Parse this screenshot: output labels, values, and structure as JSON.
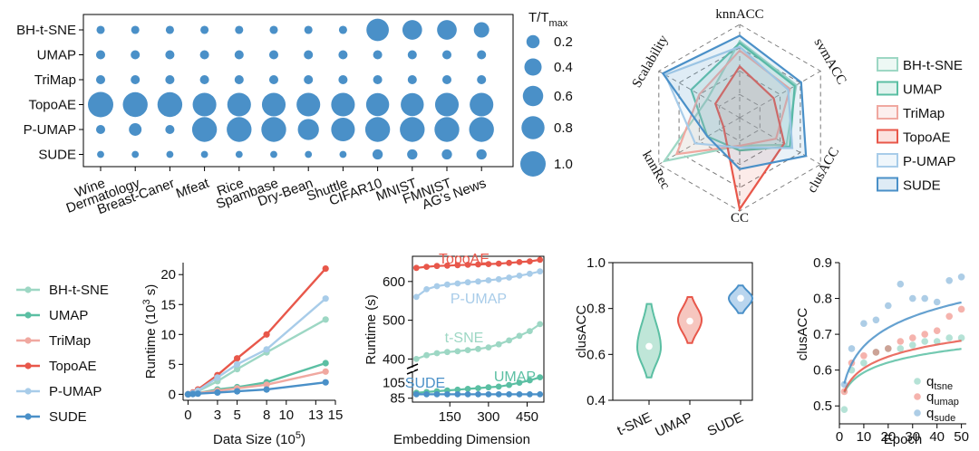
{
  "chart_data": [
    {
      "id": "bubble",
      "type": "scatter",
      "title": "",
      "rows": [
        "BH-t-SNE",
        "UMAP",
        "TriMap",
        "TopoAE",
        "P-UMAP",
        "SUDE"
      ],
      "columns": [
        "Wine",
        "Dermatology",
        "Breast-Caner",
        "Mfeat",
        "Rice",
        "Spambase",
        "Dry-Bean",
        "Shuttle",
        "CIFAR10",
        "MNIST",
        "FMNIST",
        "AG's News"
      ],
      "values": [
        [
          0.05,
          0.05,
          0.05,
          0.05,
          0.05,
          0.05,
          0.05,
          0.05,
          0.75,
          0.55,
          0.55,
          0.3
        ],
        [
          0.07,
          0.07,
          0.07,
          0.07,
          0.07,
          0.07,
          0.07,
          0.07,
          0.07,
          0.07,
          0.07,
          0.07
        ],
        [
          0.07,
          0.07,
          0.07,
          0.07,
          0.07,
          0.07,
          0.07,
          0.07,
          0.07,
          0.07,
          0.07,
          0.07
        ],
        [
          1.0,
          0.95,
          0.95,
          0.85,
          0.85,
          0.85,
          0.85,
          0.85,
          0.8,
          0.8,
          0.85,
          0.85
        ],
        [
          0.07,
          0.18,
          0.07,
          0.95,
          0.95,
          0.95,
          0.65,
          0.85,
          0.95,
          0.95,
          0.95,
          0.95
        ],
        [
          0.03,
          0.03,
          0.03,
          0.03,
          0.03,
          0.03,
          0.03,
          0.03,
          0.1,
          0.1,
          0.1,
          0.1
        ]
      ],
      "legend_title_base": "T/T",
      "legend_title_sub": "max",
      "legend": [
        0.2,
        0.4,
        0.6,
        0.8,
        1.0
      ],
      "legend_labels": [
        "0.2",
        "0.4",
        "0.6",
        "0.8",
        "1.0"
      ],
      "color": "#4a90c8"
    },
    {
      "id": "radar",
      "type": "radar",
      "axes": [
        "knnACC",
        "svmACC",
        "clusACC",
        "CC",
        "knnRec",
        "Scalability"
      ],
      "rmax": 1.0,
      "series": [
        {
          "name": "BH-t-SNE",
          "color": "#9dd7c4",
          "values": [
            0.82,
            0.7,
            0.58,
            0.3,
            0.93,
            0.4
          ]
        },
        {
          "name": "UMAP",
          "color": "#5bbfa3",
          "values": [
            0.8,
            0.68,
            0.62,
            0.35,
            0.4,
            0.6
          ]
        },
        {
          "name": "TriMap",
          "color": "#f0a8a0",
          "values": [
            0.72,
            0.62,
            0.45,
            0.3,
            0.78,
            0.5
          ]
        },
        {
          "name": "TopoAE",
          "color": "#e8574a",
          "values": [
            0.55,
            0.42,
            0.55,
            0.98,
            0.2,
            0.3
          ]
        },
        {
          "name": "P-UMAP",
          "color": "#a8cce9",
          "values": [
            0.76,
            0.6,
            0.65,
            0.32,
            0.55,
            0.92
          ]
        },
        {
          "name": "SUDE",
          "color": "#4a90c8",
          "values": [
            0.88,
            0.76,
            0.82,
            0.55,
            0.4,
            0.95
          ]
        }
      ]
    },
    {
      "id": "runtime",
      "type": "line",
      "xlabel_base": "Data Size (10",
      "xlabel_exp": "5",
      "xlabel_tail": ")",
      "ylabel_base": "Runtime (10",
      "ylabel_exp": "3",
      "ylabel_tail": " s)",
      "xlim": [
        -0.5,
        15
      ],
      "ylim": [
        -1,
        22
      ],
      "xticks": [
        0,
        3,
        5,
        8,
        10,
        13,
        15
      ],
      "yticks": [
        0,
        5,
        10,
        15,
        20
      ],
      "x": [
        0,
        0.5,
        1,
        3,
        5,
        8,
        14
      ],
      "series": [
        {
          "name": "BH-t-SNE",
          "color": "#9dd7c4",
          "values": [
            0,
            0.2,
            0.5,
            2.2,
            4.2,
            7.0,
            12.5
          ]
        },
        {
          "name": "UMAP",
          "color": "#5bbfa3",
          "values": [
            0,
            0.1,
            0.2,
            0.8,
            1.2,
            2.0,
            5.2
          ]
        },
        {
          "name": "TriMap",
          "color": "#f0a8a0",
          "values": [
            0,
            0.1,
            0.2,
            0.6,
            1.0,
            1.6,
            3.8
          ]
        },
        {
          "name": "TopoAE",
          "color": "#e8574a",
          "values": [
            0,
            0.3,
            0.8,
            3.2,
            6.0,
            10.0,
            21.0
          ]
        },
        {
          "name": "P-UMAP",
          "color": "#a8cce9",
          "values": [
            0,
            0.2,
            0.6,
            2.8,
            5.0,
            7.5,
            16.0
          ]
        },
        {
          "name": "SUDE",
          "color": "#4a90c8",
          "values": [
            0,
            0.05,
            0.1,
            0.3,
            0.5,
            0.8,
            2.0
          ]
        }
      ]
    },
    {
      "id": "embedding",
      "type": "line",
      "xlabel": "Embedding Dimension",
      "ylabel": "Runtime (s)",
      "xticks": [
        150,
        300,
        450
      ],
      "yticks_upper": [
        400,
        500,
        600
      ],
      "yticks_lower": [
        85,
        105
      ],
      "x": [
        20,
        60,
        100,
        140,
        180,
        220,
        260,
        300,
        340,
        380,
        420,
        460,
        500
      ],
      "series": [
        {
          "name": "TopoAE",
          "label": "TopoAE",
          "color": "#e8574a",
          "values": [
            635,
            638,
            640,
            641,
            642,
            643,
            644,
            645,
            646,
            648,
            650,
            652,
            656
          ]
        },
        {
          "name": "P-UMAP",
          "label": "P-UMAP",
          "color": "#a8cce9",
          "values": [
            560,
            580,
            588,
            592,
            595,
            598,
            600,
            603,
            606,
            610,
            615,
            620,
            626
          ]
        },
        {
          "name": "t-SNE",
          "label": "t-SNE",
          "color": "#9dd7c4",
          "values": [
            400,
            410,
            415,
            418,
            420,
            423,
            426,
            430,
            438,
            448,
            460,
            472,
            490
          ]
        },
        {
          "name": "UMAP",
          "label": "UMAP",
          "color": "#5bbfa3",
          "values": [
            92,
            93,
            94,
            95,
            96,
            97,
            98,
            99,
            100,
            102,
            105,
            108,
            112
          ]
        },
        {
          "name": "SUDE",
          "label": "SUDE",
          "color": "#4a90c8",
          "values": [
            90,
            90,
            90,
            90,
            90,
            90,
            90,
            90,
            90,
            90,
            90,
            90,
            90
          ]
        }
      ]
    },
    {
      "id": "violin",
      "type": "violin",
      "ylabel": "clusACC",
      "ylim": [
        0.4,
        1.0
      ],
      "yticks": [
        0.4,
        0.6,
        0.8,
        1.0
      ],
      "ytick_labels": [
        "0.4",
        "0.6",
        "0.8",
        "1.0"
      ],
      "groups": [
        {
          "name": "t-SNE",
          "color": "#5bbfa3",
          "fill": "#bfe6d8",
          "min": 0.5,
          "max": 0.82,
          "peak": 0.63,
          "median": 0.635
        },
        {
          "name": "UMAP",
          "color": "#e8574a",
          "fill": "#f6c6bf",
          "min": 0.65,
          "max": 0.85,
          "peak": 0.75,
          "median": 0.745
        },
        {
          "name": "SUDE",
          "color": "#4a90c8",
          "fill": "#b9d5ee",
          "min": 0.78,
          "max": 0.9,
          "peak": 0.845,
          "median": 0.845
        }
      ]
    },
    {
      "id": "epoch",
      "type": "scatter",
      "xlabel": "Epoch",
      "ylabel": "clusACC",
      "xlim": [
        0,
        52
      ],
      "ylim": [
        0.45,
        0.9
      ],
      "xticks": [
        0,
        10,
        20,
        30,
        40,
        50
      ],
      "yticks": [
        0.5,
        0.6,
        0.7,
        0.8,
        0.9
      ],
      "ytick_labels": [
        "0.5",
        "0.6",
        "0.7",
        "0.8",
        "0.9"
      ],
      "series": [
        {
          "name": "q_tsne",
          "label_base": "q",
          "label_sub": "tsne",
          "color": "#5bbfa3",
          "fit": [
            0.52,
            0.043
          ],
          "points": [
            [
              2,
              0.49
            ],
            [
              5,
              0.6
            ],
            [
              10,
              0.62
            ],
            [
              15,
              0.65
            ],
            [
              20,
              0.66
            ],
            [
              25,
              0.66
            ],
            [
              30,
              0.67
            ],
            [
              35,
              0.68
            ],
            [
              40,
              0.68
            ],
            [
              45,
              0.69
            ],
            [
              50,
              0.69
            ]
          ]
        },
        {
          "name": "q_umap",
          "label_base": "q",
          "label_sub": "umap",
          "color": "#e8574a",
          "fit": [
            0.52,
            0.05
          ],
          "points": [
            [
              2,
              0.54
            ],
            [
              5,
              0.62
            ],
            [
              10,
              0.64
            ],
            [
              15,
              0.65
            ],
            [
              20,
              0.66
            ],
            [
              25,
              0.68
            ],
            [
              30,
              0.69
            ],
            [
              35,
              0.7
            ],
            [
              40,
              0.71
            ],
            [
              45,
              0.75
            ],
            [
              50,
              0.77
            ]
          ]
        },
        {
          "name": "q_sude",
          "label_base": "q",
          "label_sub": "sude",
          "color": "#4a90c8",
          "fit": [
            0.53,
            0.08
          ],
          "points": [
            [
              2,
              0.56
            ],
            [
              5,
              0.66
            ],
            [
              10,
              0.73
            ],
            [
              15,
              0.74
            ],
            [
              20,
              0.78
            ],
            [
              25,
              0.84
            ],
            [
              30,
              0.8
            ],
            [
              35,
              0.8
            ],
            [
              40,
              0.79
            ],
            [
              45,
              0.85
            ],
            [
              50,
              0.86
            ]
          ]
        }
      ]
    }
  ]
}
